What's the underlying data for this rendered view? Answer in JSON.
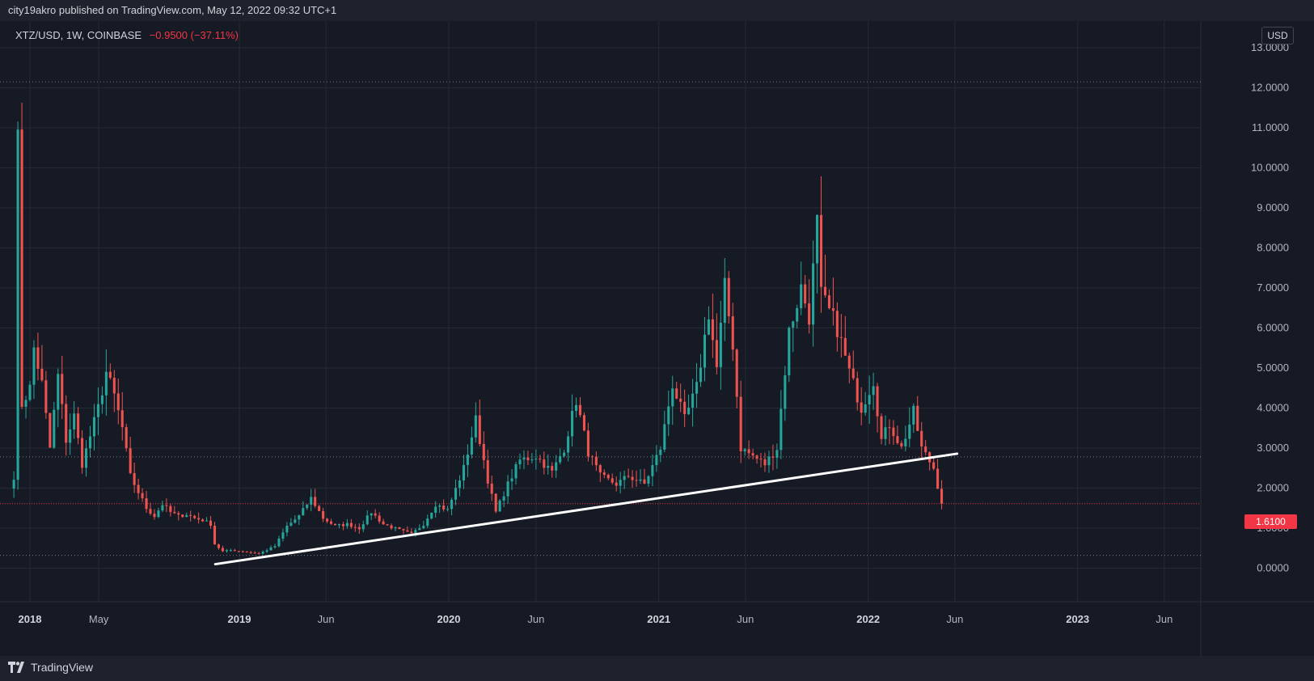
{
  "header": {
    "publisher": "city19akro published on TradingView.com, May 12, 2022 09:32 UTC+1"
  },
  "symbol": {
    "title": "XTZ/USD, 1W, COINBASE",
    "change": "−0.9500 (−37.11%)"
  },
  "currency": "USD",
  "last_price_label": "1.6100",
  "footer": {
    "brand": "TradingView"
  },
  "colors": {
    "up": "#26a69a",
    "down": "#ef5350",
    "trendline": "#ffffff",
    "background": "#161a25",
    "grid": "#262a35"
  },
  "chart_data": {
    "type": "candlestick",
    "interval": "1W",
    "ylim": [
      -0.9,
      13.0
    ],
    "y_ticks": [
      "13.0000",
      "12.0000",
      "11.0000",
      "10.0000",
      "9.0000",
      "8.0000",
      "7.0000",
      "6.0000",
      "5.0000",
      "4.0000",
      "3.0000",
      "2.0000",
      "1.0000",
      "0.0000"
    ],
    "x_ticks": [
      {
        "label": "2018",
        "date": "2018-01-01",
        "year": true
      },
      {
        "label": "May",
        "date": "2018-05-01",
        "year": false
      },
      {
        "label": "2019",
        "date": "2019-01-01",
        "year": true
      },
      {
        "label": "Jun",
        "date": "2019-06-01",
        "year": false
      },
      {
        "label": "2020",
        "date": "2020-01-01",
        "year": true
      },
      {
        "label": "Jun",
        "date": "2020-06-01",
        "year": false
      },
      {
        "label": "2021",
        "date": "2021-01-01",
        "year": true
      },
      {
        "label": "Jun",
        "date": "2021-06-01",
        "year": false
      },
      {
        "label": "2022",
        "date": "2022-01-01",
        "year": true
      },
      {
        "label": "Jun",
        "date": "2022-06-01",
        "year": false
      },
      {
        "label": "2023",
        "date": "2023-01-01",
        "year": true
      },
      {
        "label": "Jun",
        "date": "2023-06-01",
        "year": false
      }
    ],
    "horizontal_levels": [
      {
        "price": 12.15,
        "style": "dotted"
      },
      {
        "price": 2.78,
        "style": "dotted"
      },
      {
        "price": 0.32,
        "style": "dotted"
      },
      {
        "price": 1.61,
        "style": "last-price"
      }
    ],
    "trendline": {
      "start": [
        "2018-11-20",
        0.1
      ],
      "end": [
        "2022-06-05",
        2.86
      ]
    },
    "anchors": [
      [
        "2017-12-04",
        2.3
      ],
      [
        "2017-12-11",
        10.6
      ],
      [
        "2017-12-18",
        4.1
      ],
      [
        "2018-01-01",
        4.5
      ],
      [
        "2018-01-08",
        5.5
      ],
      [
        "2018-01-22",
        4.6
      ],
      [
        "2018-02-05",
        3.0
      ],
      [
        "2018-02-19",
        4.8
      ],
      [
        "2018-03-05",
        3.2
      ],
      [
        "2018-03-19",
        3.8
      ],
      [
        "2018-04-02",
        2.6
      ],
      [
        "2018-04-16",
        3.3
      ],
      [
        "2018-04-30",
        4.0
      ],
      [
        "2018-05-14",
        4.9
      ],
      [
        "2018-05-28",
        4.3
      ],
      [
        "2018-06-11",
        3.5
      ],
      [
        "2018-06-25",
        2.3
      ],
      [
        "2018-07-09",
        1.9
      ],
      [
        "2018-07-23",
        1.5
      ],
      [
        "2018-08-06",
        1.3
      ],
      [
        "2018-08-20",
        1.6
      ],
      [
        "2018-09-03",
        1.4
      ],
      [
        "2018-09-17",
        1.3
      ],
      [
        "2018-10-01",
        1.35
      ],
      [
        "2018-10-15",
        1.25
      ],
      [
        "2018-10-29",
        1.2
      ],
      [
        "2018-11-12",
        1.1
      ],
      [
        "2018-11-19",
        0.6
      ],
      [
        "2018-12-03",
        0.42
      ],
      [
        "2018-12-17",
        0.45
      ],
      [
        "2019-01-07",
        0.42
      ],
      [
        "2019-02-04",
        0.36
      ],
      [
        "2019-03-04",
        0.55
      ],
      [
        "2019-03-25",
        1.05
      ],
      [
        "2019-04-15",
        1.3
      ],
      [
        "2019-05-06",
        1.75
      ],
      [
        "2019-05-27",
        1.25
      ],
      [
        "2019-06-17",
        1.05
      ],
      [
        "2019-07-08",
        1.1
      ],
      [
        "2019-07-29",
        1.0
      ],
      [
        "2019-08-19",
        1.4
      ],
      [
        "2019-09-09",
        1.1
      ],
      [
        "2019-10-07",
        0.95
      ],
      [
        "2019-10-28",
        0.85
      ],
      [
        "2019-11-18",
        1.1
      ],
      [
        "2019-12-09",
        1.6
      ],
      [
        "2019-12-30",
        1.45
      ],
      [
        "2020-01-27",
        2.5
      ],
      [
        "2020-02-17",
        3.7
      ],
      [
        "2020-03-09",
        2.2
      ],
      [
        "2020-03-23",
        1.4
      ],
      [
        "2020-04-13",
        2.1
      ],
      [
        "2020-05-04",
        2.7
      ],
      [
        "2020-06-01",
        2.8
      ],
      [
        "2020-06-29",
        2.4
      ],
      [
        "2020-07-20",
        3.0
      ],
      [
        "2020-08-10",
        4.2
      ],
      [
        "2020-08-31",
        2.9
      ],
      [
        "2020-09-21",
        2.3
      ],
      [
        "2020-10-19",
        2.1
      ],
      [
        "2020-11-09",
        2.3
      ],
      [
        "2020-12-07",
        2.1
      ],
      [
        "2021-01-04",
        3.0
      ],
      [
        "2021-01-25",
        4.6
      ],
      [
        "2021-02-15",
        3.7
      ],
      [
        "2021-03-08",
        4.5
      ],
      [
        "2021-03-29",
        6.4
      ],
      [
        "2021-04-12",
        5.0
      ],
      [
        "2021-04-26",
        7.0
      ],
      [
        "2021-05-10",
        5.6
      ],
      [
        "2021-05-24",
        3.0
      ],
      [
        "2021-06-14",
        2.8
      ],
      [
        "2021-07-05",
        2.6
      ],
      [
        "2021-07-26",
        3.0
      ],
      [
        "2021-08-16",
        5.9
      ],
      [
        "2021-09-06",
        7.0
      ],
      [
        "2021-09-20",
        6.3
      ],
      [
        "2021-10-04",
        8.6
      ],
      [
        "2021-10-11",
        6.8
      ],
      [
        "2021-11-08",
        6.0
      ],
      [
        "2021-11-29",
        4.9
      ],
      [
        "2021-12-20",
        4.0
      ],
      [
        "2022-01-10",
        4.7
      ],
      [
        "2022-01-24",
        3.2
      ],
      [
        "2022-02-07",
        3.6
      ],
      [
        "2022-02-28",
        3.0
      ],
      [
        "2022-03-21",
        3.9
      ],
      [
        "2022-04-04",
        3.0
      ],
      [
        "2022-04-25",
        2.5
      ],
      [
        "2022-05-09",
        1.61
      ]
    ]
  }
}
